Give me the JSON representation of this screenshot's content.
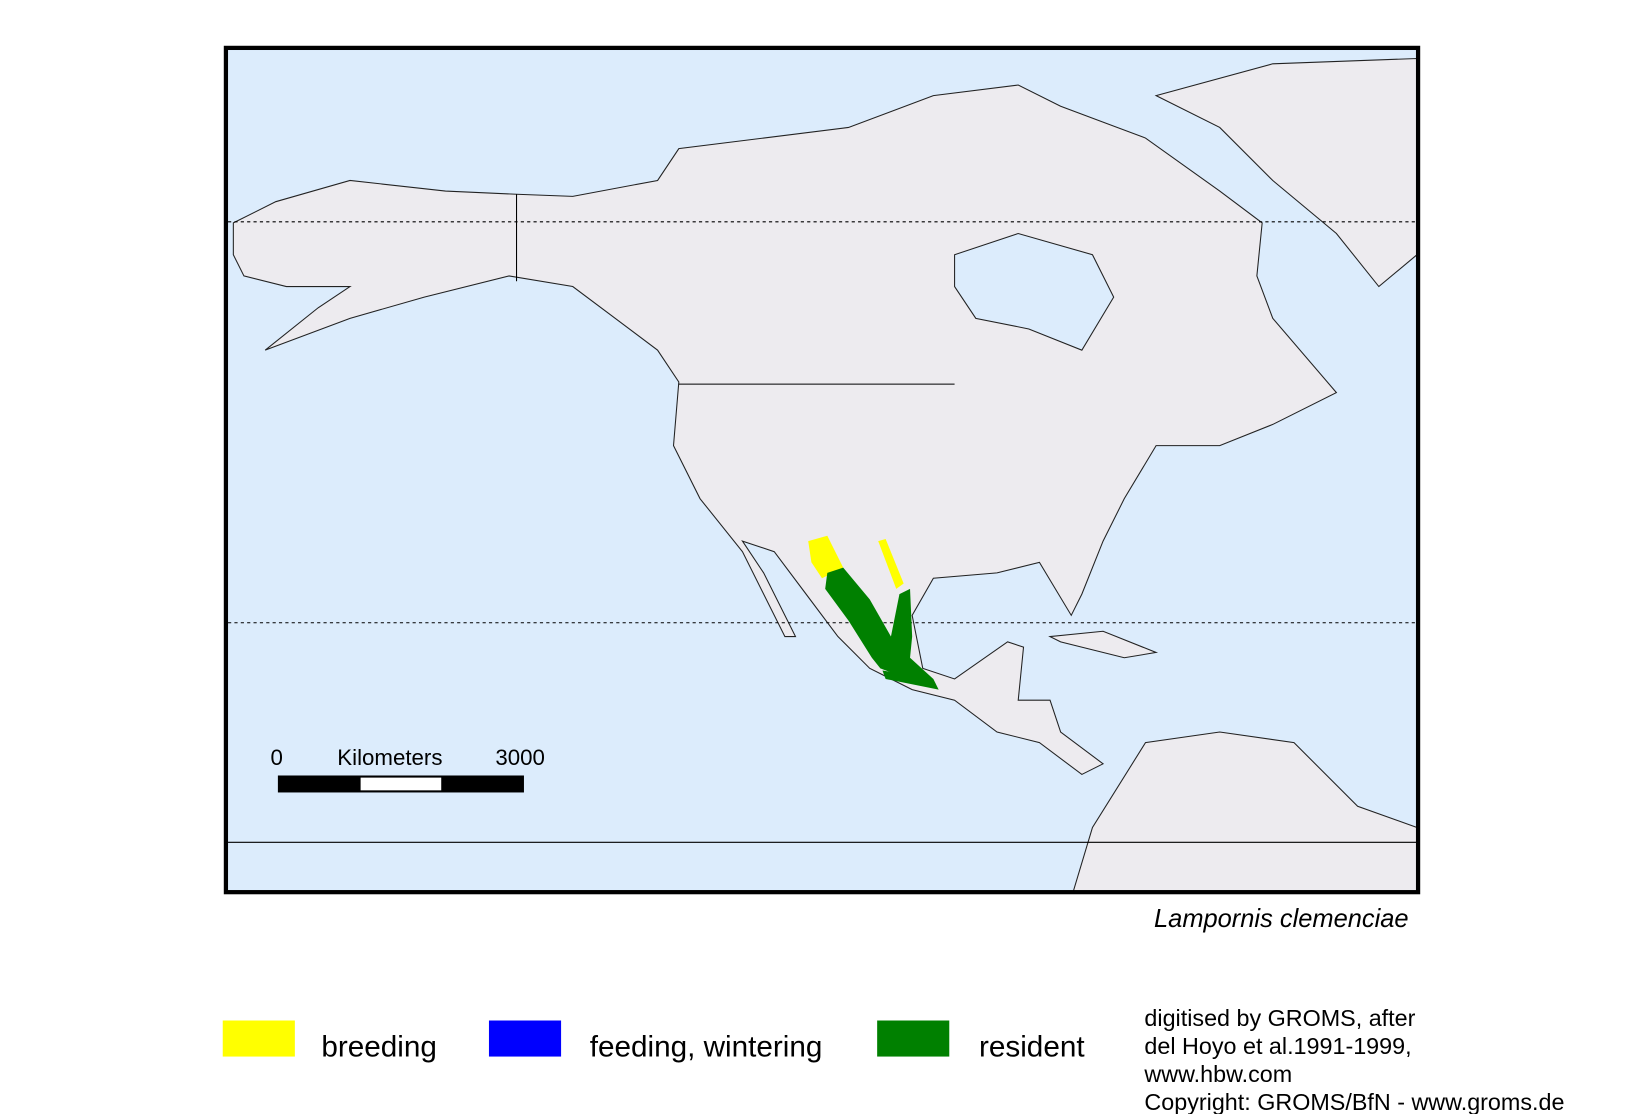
{
  "map": {
    "scale_bar": {
      "start": "0",
      "unit": "Kilometers",
      "end": "3000"
    },
    "species": "Lampornis clemenciae",
    "legend": [
      {
        "label": "breeding",
        "color": "#ffff00"
      },
      {
        "label": "feeding, wintering",
        "color": "#0000ff"
      },
      {
        "label": "resident",
        "color": "#008000"
      }
    ],
    "credits": [
      "digitised by GROMS, after",
      "del Hoyo et al.1991-1999,",
      "www.hbw.com",
      "Copyright: GROMS/BfN - www.groms.de"
    ]
  }
}
